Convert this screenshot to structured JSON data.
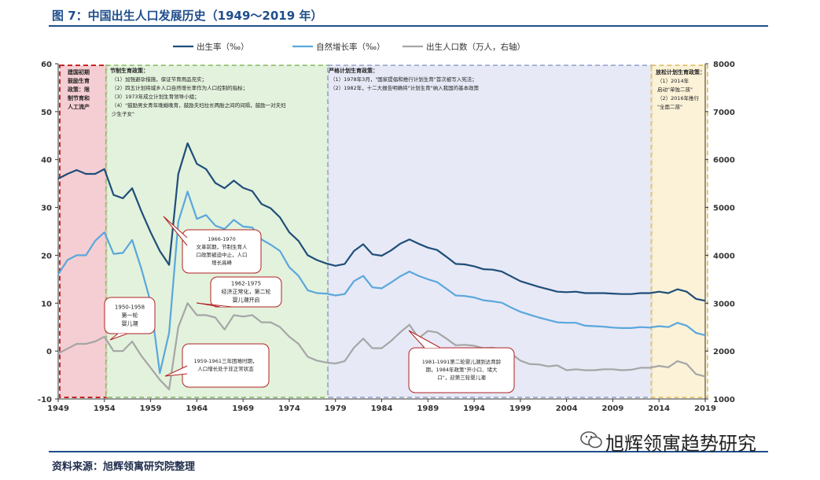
{
  "figure_title": "图 7：中国出生人口发展历史（1949～2019 年）",
  "source": "资料来源：旭辉领寓研究院整理",
  "watermark": "旭辉领寓趋势研究",
  "colors": {
    "birth_rate": "#1f4e79",
    "natural_growth": "#5aa7dc",
    "births": "#a6a6a6",
    "era1": "#f4c6cc",
    "era2": "#dff0d8",
    "era3": "#e3e6f5",
    "era4": "#fbf0d2"
  },
  "chart_data": {
    "type": "line",
    "x_ticks": [
      "1949",
      "1954",
      "1959",
      "1964",
      "1969",
      "1974",
      "1979",
      "1984",
      "1989",
      "1994",
      "1999",
      "2004",
      "2009",
      "2014",
      "2019"
    ],
    "xlim": [
      1949,
      2019
    ],
    "ylim_left": [
      -10,
      60
    ],
    "ylim_right": [
      1000,
      8000
    ],
    "y_ticks_left": [
      "-10",
      "0",
      "10",
      "20",
      "30",
      "40",
      "50",
      "60"
    ],
    "y_ticks_right": [
      "1000",
      "2000",
      "3000",
      "4000",
      "5000",
      "6000",
      "7000",
      "8000"
    ],
    "legend": [
      "出生率（‰）",
      "自然增长率（‰）",
      "出生人口数（万人，右轴）"
    ],
    "legend_position": "top",
    "series": [
      {
        "name": "出生率（‰）",
        "axis": "left",
        "x": [
          1949,
          1950,
          1951,
          1952,
          1953,
          1954,
          1955,
          1956,
          1957,
          1958,
          1959,
          1960,
          1961,
          1962,
          1963,
          1964,
          1965,
          1966,
          1967,
          1968,
          1969,
          1970,
          1971,
          1972,
          1973,
          1974,
          1975,
          1976,
          1977,
          1978,
          1979,
          1980,
          1981,
          1982,
          1983,
          1984,
          1985,
          1986,
          1987,
          1988,
          1989,
          1990,
          1991,
          1992,
          1993,
          1994,
          1995,
          1996,
          1997,
          1998,
          1999,
          2000,
          2001,
          2002,
          2003,
          2004,
          2005,
          2006,
          2007,
          2008,
          2009,
          2010,
          2011,
          2012,
          2013,
          2014,
          2015,
          2016,
          2017,
          2018,
          2019
        ],
        "values": [
          36.0,
          37.0,
          37.8,
          37.0,
          37.0,
          38.0,
          32.6,
          31.9,
          34.0,
          29.2,
          24.8,
          20.9,
          18.0,
          37.0,
          43.4,
          39.1,
          38.0,
          35.1,
          34.0,
          35.6,
          34.1,
          33.4,
          30.7,
          29.8,
          27.9,
          24.8,
          23.0,
          20.0,
          19.0,
          18.3,
          17.8,
          18.2,
          20.9,
          22.3,
          20.2,
          19.9,
          21.0,
          22.4,
          23.3,
          22.4,
          21.6,
          21.1,
          19.7,
          18.2,
          18.1,
          17.7,
          17.1,
          17.0,
          16.6,
          15.6,
          14.6,
          14.0,
          13.4,
          12.9,
          12.4,
          12.3,
          12.4,
          12.1,
          12.1,
          12.1,
          12.0,
          11.9,
          11.9,
          12.1,
          12.1,
          12.4,
          12.1,
          12.9,
          12.4,
          10.9,
          10.5
        ]
      },
      {
        "name": "自然增长率（‰）",
        "axis": "left",
        "x": [
          1949,
          1950,
          1951,
          1952,
          1953,
          1954,
          1955,
          1956,
          1957,
          1958,
          1959,
          1960,
          1961,
          1962,
          1963,
          1964,
          1965,
          1966,
          1967,
          1968,
          1969,
          1970,
          1971,
          1972,
          1973,
          1974,
          1975,
          1976,
          1977,
          1978,
          1979,
          1980,
          1981,
          1982,
          1983,
          1984,
          1985,
          1986,
          1987,
          1988,
          1989,
          1990,
          1991,
          1992,
          1993,
          1994,
          1995,
          1996,
          1997,
          1998,
          1999,
          2000,
          2001,
          2002,
          2003,
          2004,
          2005,
          2006,
          2007,
          2008,
          2009,
          2010,
          2011,
          2012,
          2013,
          2014,
          2015,
          2016,
          2017,
          2018,
          2019
        ],
        "values": [
          16.0,
          19.0,
          20.0,
          20.0,
          23.0,
          24.8,
          20.3,
          20.5,
          23.2,
          17.2,
          10.2,
          -4.6,
          3.8,
          27.0,
          33.3,
          27.6,
          28.4,
          26.2,
          25.5,
          27.4,
          26.0,
          25.8,
          23.3,
          22.2,
          20.9,
          17.5,
          15.7,
          12.7,
          12.1,
          12.0,
          11.6,
          11.9,
          14.6,
          15.7,
          13.3,
          13.1,
          14.3,
          15.6,
          16.6,
          15.7,
          15.0,
          14.4,
          13.0,
          11.6,
          11.5,
          11.2,
          10.6,
          10.4,
          10.1,
          9.1,
          8.2,
          7.6,
          7.0,
          6.5,
          6.0,
          5.9,
          5.9,
          5.3,
          5.2,
          5.1,
          4.9,
          4.8,
          4.8,
          5.0,
          4.9,
          5.2,
          5.0,
          5.9,
          5.3,
          3.8,
          3.3
        ]
      },
      {
        "name": "出生人口数（万人，右轴）",
        "axis": "right",
        "x": [
          1949,
          1950,
          1951,
          1952,
          1953,
          1954,
          1955,
          1956,
          1957,
          1958,
          1959,
          1960,
          1961,
          1962,
          1963,
          1964,
          1965,
          1966,
          1967,
          1968,
          1969,
          1970,
          1971,
          1972,
          1973,
          1974,
          1975,
          1976,
          1977,
          1978,
          1979,
          1980,
          1981,
          1982,
          1983,
          1984,
          1985,
          1986,
          1987,
          1988,
          1989,
          1990,
          1991,
          1992,
          1993,
          1994,
          1995,
          1996,
          1997,
          1998,
          1999,
          2000,
          2001,
          2002,
          2003,
          2004,
          2005,
          2006,
          2007,
          2008,
          2009,
          2010,
          2011,
          2012,
          2013,
          2014,
          2015,
          2016,
          2017,
          2018,
          2019
        ],
        "values": [
          1950,
          2050,
          2150,
          2150,
          2200,
          2300,
          2000,
          2000,
          2200,
          1900,
          1650,
          1400,
          1200,
          2500,
          3000,
          2750,
          2750,
          2700,
          2450,
          2750,
          2720,
          2750,
          2600,
          2600,
          2500,
          2300,
          2150,
          1880,
          1800,
          1760,
          1740,
          1790,
          2070,
          2260,
          2060,
          2060,
          2210,
          2390,
          2550,
          2270,
          2420,
          2390,
          2260,
          2120,
          2130,
          2110,
          2060,
          2070,
          2040,
          1950,
          1800,
          1730,
          1720,
          1680,
          1700,
          1600,
          1620,
          1600,
          1600,
          1620,
          1620,
          1600,
          1610,
          1650,
          1650,
          1690,
          1660,
          1790,
          1730,
          1520,
          1470
        ]
      }
    ],
    "eras": [
      {
        "label": "建国初期鼓励生育政策：限制节育和人工流产",
        "range": [
          1949,
          1954
        ]
      },
      {
        "label": "节制生育政策",
        "range": [
          1954,
          1978
        ]
      },
      {
        "label": "严格计划生育政策",
        "range": [
          1978,
          2013
        ]
      },
      {
        "label": "放松计划生育政策",
        "range": [
          2013,
          2019
        ]
      }
    ]
  },
  "era_texts": {
    "era1": [
      "建国初期",
      "鼓励生育",
      "政策：限",
      "制节育和",
      "人工流产"
    ],
    "era2_title": "节制生育政策：",
    "era2_lines": [
      "（1）加强避孕措施，保证节育用品充实；",
      "（2）四五计划将城乡人口自然增长率作为人口控制的指标；",
      "（3）1973年成立计划生育领导小组；",
      "（4）\"鼓励男女青年晚婚晚育，鼓励夫妇拉长两胎之间的间隔，鼓励一对夫妇",
      "少生子女\""
    ],
    "era3_title": "严格计划生育政策：",
    "era3_lines": [
      "（1）1978年3月，\"国家提倡和推行计划生育\"首次被写入宪法；",
      "（2）1982年，十二大报告明确将\"计划生育\"纳入我国的基本政策"
    ],
    "era4_title": "放松计划生育政策：",
    "era4_lines": [
      "（1）2014年",
      "启动\"单独二孩\"",
      "（2）2016年推行",
      "\"全面二孩\""
    ]
  },
  "callouts": {
    "c1966": [
      "1966-1970",
      "文革前期，节制生育人",
      "口政策被迫中止，人口",
      "增长高峰"
    ],
    "c1962": [
      "1962-1975",
      "经济正常化，第二轮",
      "婴儿潮开启"
    ],
    "c1950": [
      "1950-1958",
      "第一轮",
      "婴儿潮"
    ],
    "c1959": [
      "1959-1961三年困难时期，",
      "人口增长处于非正常状态"
    ],
    "c1981": [
      "1981-1991第二轮婴儿潮到达育龄",
      "期，1984年政策\"开小口、堵大",
      "口\"，迎第三轮婴儿潮"
    ]
  }
}
